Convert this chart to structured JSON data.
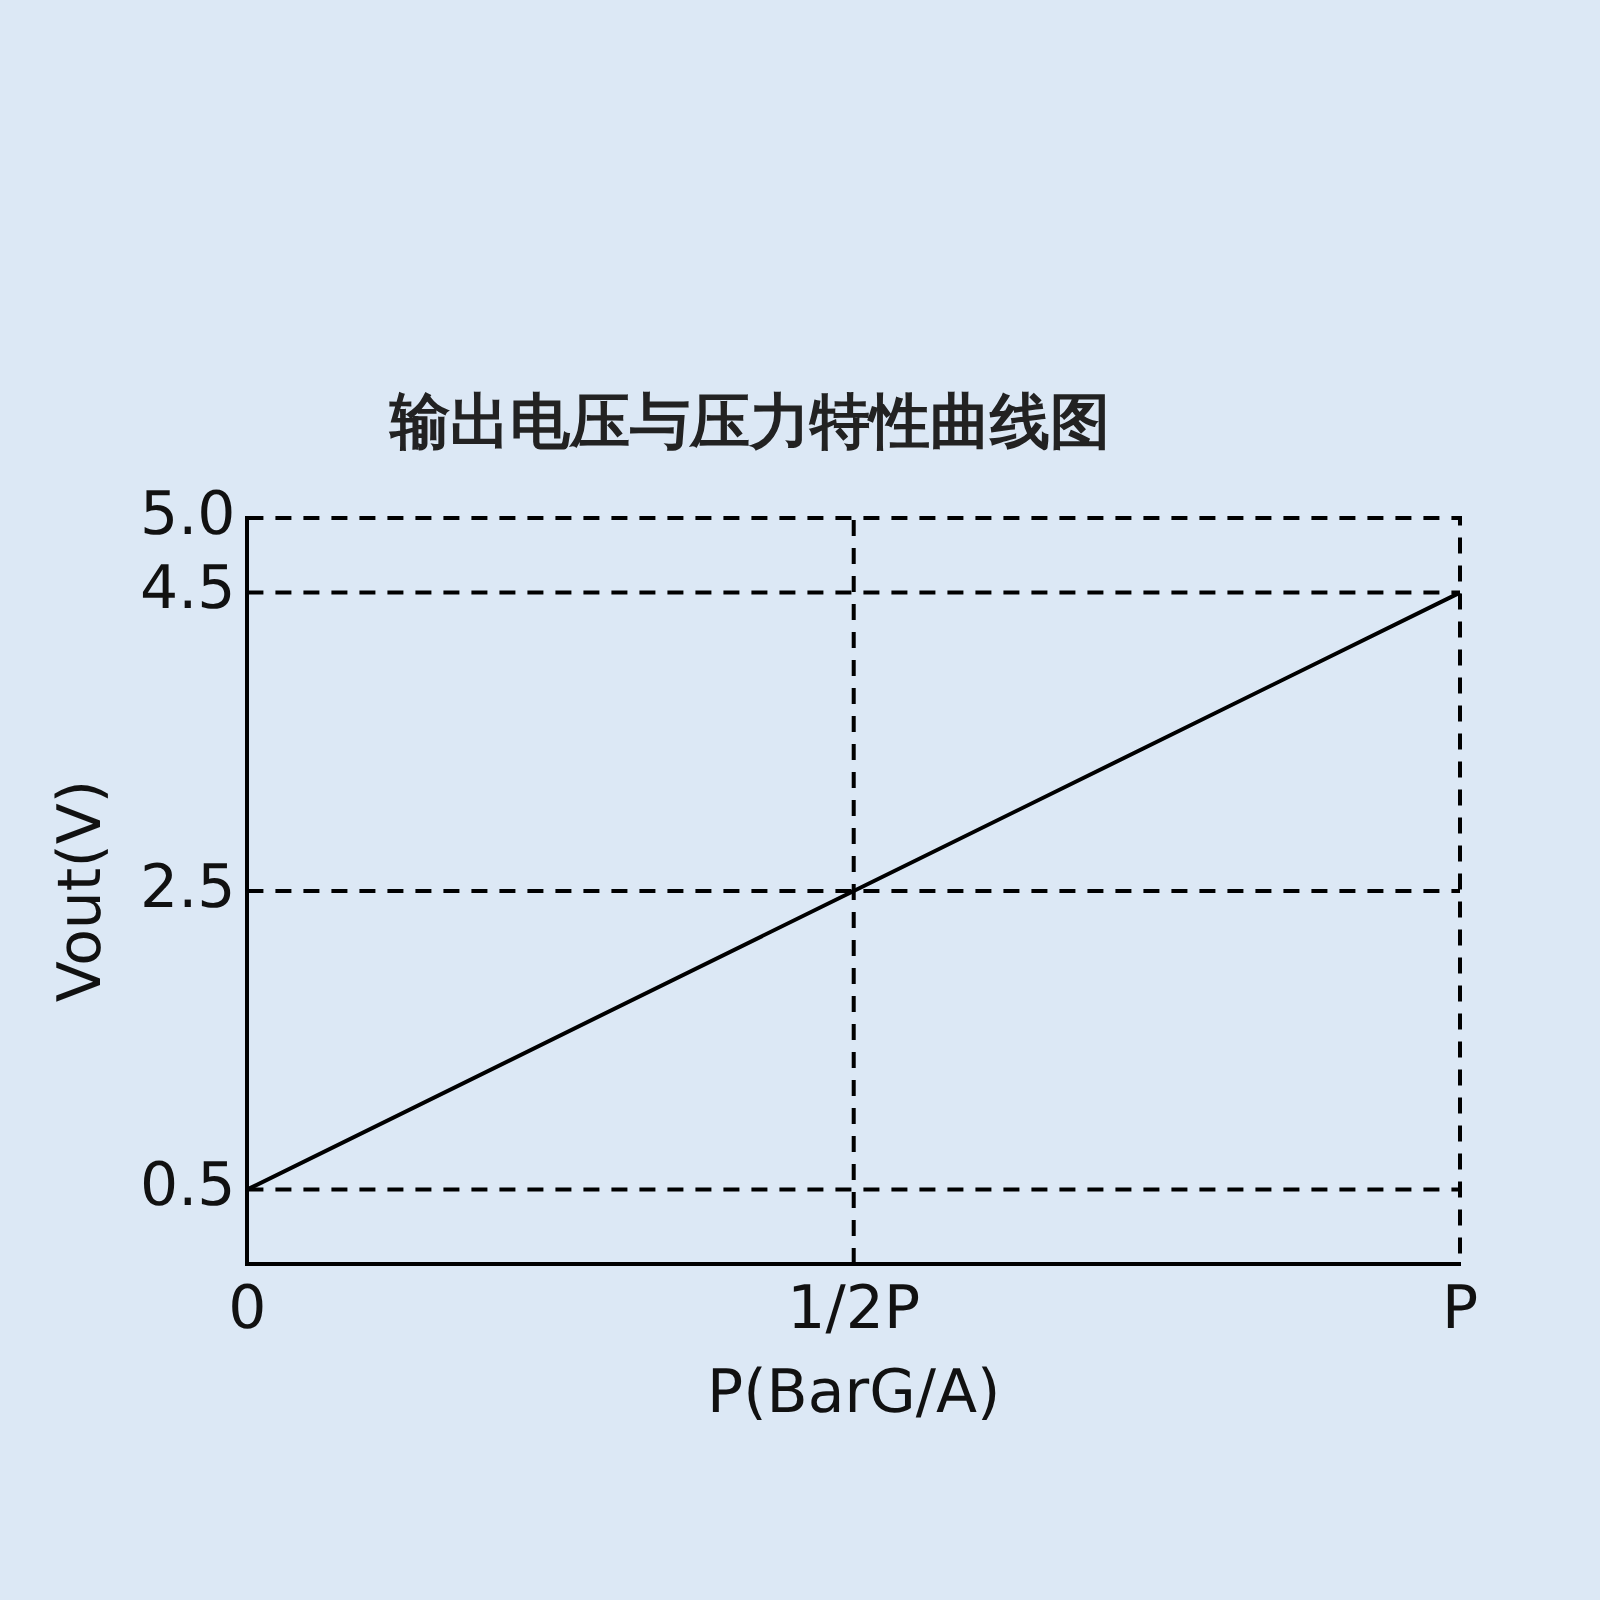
{
  "chart_data": {
    "type": "line",
    "title": "输出电压与压力特性曲线图",
    "xlabel": "P(BarG/A)",
    "ylabel": "Vout(V)",
    "categories": [
      "0",
      "1/2P",
      "P"
    ],
    "series": [
      {
        "color": "#000000",
        "values": [
          0.5,
          2.5,
          4.5
        ]
      }
    ],
    "ylim": [
      0,
      5
    ],
    "yticks": [
      {
        "value": 0.5,
        "label": "0.5"
      },
      {
        "value": 2.5,
        "label": "2.5"
      },
      {
        "value": 4.5,
        "label": "4.5"
      },
      {
        "value": 5,
        "label": "5.0"
      }
    ],
    "ref_lines": [
      {
        "axis": "y",
        "value": 0.5,
        "color": "#000000",
        "line_style": "dashed"
      },
      {
        "axis": "y",
        "value": 2.5,
        "color": "#000000",
        "line_style": "dashed"
      },
      {
        "axis": "y",
        "value": 4.5,
        "color": "#000000",
        "line_style": "dashed"
      },
      {
        "axis": "x",
        "value": "1/2P",
        "color": "#000000",
        "line_style": "dashed"
      }
    ],
    "legend": false,
    "grid": false,
    "marker": "none",
    "line_style": "solid"
  }
}
